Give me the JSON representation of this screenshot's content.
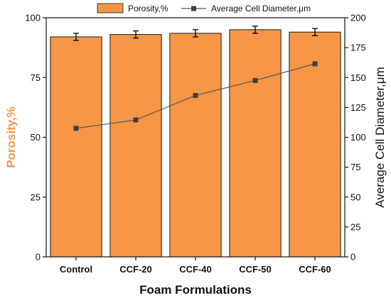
{
  "chart_data": {
    "type": "bar",
    "categories": [
      "Control",
      "CCF-20",
      "CCF-40",
      "CCF-50",
      "CCF-60"
    ],
    "xlabel": "Foam Formulations",
    "series": [
      {
        "name": "Porosity,%",
        "type": "bar",
        "axis": "left",
        "values": [
          92,
          93,
          93.5,
          95,
          94
        ],
        "errors": [
          1.5,
          1.5,
          1.5,
          1.5,
          1.5
        ]
      },
      {
        "name": "Average Cell Diameter,μm",
        "type": "line",
        "axis": "right",
        "values": [
          107.5,
          114.5,
          135,
          147.5,
          161.5
        ]
      }
    ],
    "ylabel_left": "Porosity,%",
    "ylim_left": [
      0,
      100
    ],
    "yticks_left": [
      "0",
      "25",
      "50",
      "75",
      "100"
    ],
    "ylabel_right": "Average Cell Diameter,μm",
    "ylim_right": [
      0,
      200
    ],
    "yticks_right": [
      "0",
      "25",
      "50",
      "75",
      "100",
      "125",
      "150",
      "175",
      "200"
    ],
    "legend_position": "top",
    "grid": false,
    "colors": {
      "bar_fill": "#F79646",
      "bar_stroke": "#1a1a1a",
      "line": "#555555",
      "marker": "#404040",
      "left_axis_label": "#F79646"
    }
  }
}
